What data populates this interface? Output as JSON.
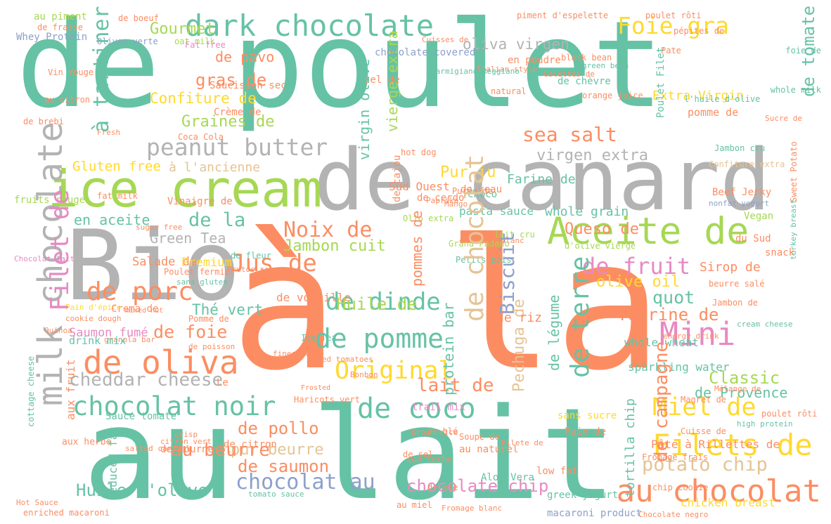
{
  "words": [
    {
      "text": "de poulet",
      "color": "c0"
    },
    {
      "text": "à la",
      "color": "c1"
    },
    {
      "text": "au lait",
      "color": "c0"
    },
    {
      "text": "de canard",
      "color": "c7"
    },
    {
      "text": "Bio",
      "color": "c7"
    },
    {
      "text": "ice cream",
      "color": "c4"
    },
    {
      "text": "Aceite de",
      "color": "c4"
    },
    {
      "text": "dark chocolate",
      "color": "c0"
    },
    {
      "text": "peanut butter",
      "color": "c7"
    },
    {
      "text": "Foie gra",
      "color": "c5"
    },
    {
      "text": "oliva virgen",
      "color": "c7"
    },
    {
      "text": "Gourmet",
      "color": "c4"
    },
    {
      "text": "de pavo",
      "color": "c1"
    },
    {
      "text": "gras de",
      "color": "c1"
    },
    {
      "text": "Confiture de",
      "color": "c5"
    },
    {
      "text": "Graines de",
      "color": "c4"
    },
    {
      "text": "sea salt",
      "color": "c1"
    },
    {
      "text": "virgen extra",
      "color": "c7"
    },
    {
      "text": "Gluten free",
      "color": "c5"
    },
    {
      "text": "à l'ancienne",
      "color": "c6"
    },
    {
      "text": "Pur ju",
      "color": "c5"
    },
    {
      "text": "Noix de",
      "color": "c1"
    },
    {
      "text": "Jus de",
      "color": "c1"
    },
    {
      "text": "en aceite",
      "color": "c0"
    },
    {
      "text": "de la",
      "color": "c0"
    },
    {
      "text": "Green Tea",
      "color": "c7"
    },
    {
      "text": "Jambon cuit",
      "color": "c4"
    },
    {
      "text": "Queso de",
      "color": "c1"
    },
    {
      "text": "de fruit",
      "color": "c3"
    },
    {
      "text": "olive oil",
      "color": "c5"
    },
    {
      "text": "de porc",
      "color": "c1"
    },
    {
      "text": "de dinde",
      "color": "c0"
    },
    {
      "text": "de pomme",
      "color": "c0"
    },
    {
      "text": "Huile de",
      "color": "c4"
    },
    {
      "text": "Thé vert",
      "color": "c0"
    },
    {
      "text": "de foie",
      "color": "c1"
    },
    {
      "text": "de oliva",
      "color": "c1"
    },
    {
      "text": "Original",
      "color": "c5"
    },
    {
      "text": "Mini",
      "color": "c3"
    },
    {
      "text": "quot",
      "color": "c0"
    },
    {
      "text": "Terrine de",
      "color": "c1"
    },
    {
      "text": "Classic",
      "color": "c4"
    },
    {
      "text": "cheddar cheese",
      "color": "c7"
    },
    {
      "text": "lait de",
      "color": "c1"
    },
    {
      "text": "chocolat noir",
      "color": "c0"
    },
    {
      "text": "de coco",
      "color": "c0"
    },
    {
      "text": "Miel de",
      "color": "c5"
    },
    {
      "text": "de pollo",
      "color": "c1"
    },
    {
      "text": "pur beurre",
      "color": "c6"
    },
    {
      "text": "Filets de",
      "color": "c5"
    },
    {
      "text": "potato chip",
      "color": "c6"
    },
    {
      "text": "au beurre",
      "color": "c1"
    },
    {
      "text": "de saumon",
      "color": "c1"
    },
    {
      "text": "au chocolat",
      "color": "c1"
    },
    {
      "text": "Huile d'olive",
      "color": "c0"
    },
    {
      "text": "chocolat au",
      "color": "c2"
    },
    {
      "text": "chocolate chip",
      "color": "c3"
    },
    {
      "text": "chicken breast",
      "color": "c5"
    },
    {
      "text": "Saumon fumé",
      "color": "c3"
    },
    {
      "text": "Salade de",
      "color": "c1"
    },
    {
      "text": "Premium",
      "color": "c5"
    },
    {
      "text": "de volaille",
      "color": "c1"
    },
    {
      "text": "pasta sauce",
      "color": "c0"
    },
    {
      "text": "whole grain",
      "color": "c0"
    },
    {
      "text": "Sirop de",
      "color": "c1"
    },
    {
      "text": "whole wheat",
      "color": "c0"
    },
    {
      "text": "sparkling water",
      "color": "c0"
    },
    {
      "text": "de Provence",
      "color": "c0"
    },
    {
      "text": "Pâte à Rillettes de",
      "color": "c1"
    },
    {
      "text": "Farine de",
      "color": "c0"
    },
    {
      "text": "de tomate",
      "color": "c0"
    },
    {
      "text": "Extra Virgin",
      "color": "c5"
    },
    {
      "text": "pomme de",
      "color": "c1"
    },
    {
      "text": "au piment",
      "color": "c4"
    },
    {
      "text": "Whey Protein",
      "color": "c2"
    },
    {
      "text": "Saucisson sec",
      "color": "c1"
    },
    {
      "text": "Vinaigre de",
      "color": "c1"
    },
    {
      "text": "fruits rouge",
      "color": "c4"
    },
    {
      "text": "sel de",
      "color": "c1"
    },
    {
      "text": "en poudre",
      "color": "c1"
    },
    {
      "text": "de chèvre",
      "color": "c0"
    },
    {
      "text": "Crème de",
      "color": "c1"
    },
    {
      "text": "Choco",
      "color": "c0"
    },
    {
      "text": "de veau",
      "color": "c1"
    },
    {
      "text": "Beef Jerky",
      "color": "c1"
    },
    {
      "text": "Vegan",
      "color": "c4"
    },
    {
      "text": "du Sud",
      "color": "c1"
    },
    {
      "text": "snack",
      "color": "c1"
    },
    {
      "text": "Crema de",
      "color": "c1"
    },
    {
      "text": "trail mix",
      "color": "c3"
    },
    {
      "text": "Sauce tomate",
      "color": "c0"
    },
    {
      "text": "sans sucre",
      "color": "c5"
    },
    {
      "text": "Pain de",
      "color": "c1"
    },
    {
      "text": "Aloe Vera",
      "color": "c0"
    },
    {
      "text": "low fat",
      "color": "c1"
    },
    {
      "text": "greek yogurt",
      "color": "c0"
    },
    {
      "text": "macaroni product",
      "color": "c2"
    },
    {
      "text": "au naturel",
      "color": "c1"
    },
    {
      "text": "piment d'espelette",
      "color": "c1"
    },
    {
      "text": "poulet rôti",
      "color": "c1"
    },
    {
      "text": "Olives verte",
      "color": "c2"
    },
    {
      "text": "oat milk",
      "color": "c4"
    },
    {
      "text": "Pate",
      "color": "c1"
    },
    {
      "text": "foie de",
      "color": "c0"
    },
    {
      "text": "whole milk",
      "color": "c0"
    },
    {
      "text": "Fat free",
      "color": "c3"
    },
    {
      "text": "black bean",
      "color": "c1"
    },
    {
      "text": "de boeuf",
      "color": "c1"
    },
    {
      "text": "pépites de",
      "color": "c1"
    },
    {
      "text": "hot dog",
      "color": "c1"
    },
    {
      "text": "natural",
      "color": "c1"
    },
    {
      "text": "Vin rouge",
      "color": "c1"
    },
    {
      "text": "au citron",
      "color": "c1"
    },
    {
      "text": "de brebi",
      "color": "c1"
    },
    {
      "text": "Coca Cola",
      "color": "c1"
    },
    {
      "text": "l'huile d'olive",
      "color": "c0"
    },
    {
      "text": "Confiture extra",
      "color": "c6"
    },
    {
      "text": "Jambon cru",
      "color": "c0"
    },
    {
      "text": "Purée de",
      "color": "c1"
    },
    {
      "text": "lait cru",
      "color": "c4"
    },
    {
      "text": "Olio extra",
      "color": "c4"
    },
    {
      "text": "d'olive vierge",
      "color": "c4"
    },
    {
      "text": "Petits pois",
      "color": "c0"
    },
    {
      "text": "Grana Padano",
      "color": "c4"
    },
    {
      "text": "de fleur",
      "color": "c0"
    },
    {
      "text": "Poulet fermier",
      "color": "c1"
    },
    {
      "text": "Pain d'épice",
      "color": "c5"
    },
    {
      "text": "chocolat blanc",
      "color": "c1"
    },
    {
      "text": "sans gluten",
      "color": "c0"
    },
    {
      "text": "Frutos secos",
      "color": "c1"
    },
    {
      "text": "milk chocolate",
      "color": "c7"
    },
    {
      "text": "Filet de",
      "color": "c3"
    },
    {
      "text": "à tartiner",
      "color": "c0"
    },
    {
      "text": "de terre",
      "color": "c0"
    },
    {
      "text": "de chocolat",
      "color": "c6"
    },
    {
      "text": "Biscuit",
      "color": "c2"
    },
    {
      "text": "Pechuga de",
      "color": "c6"
    },
    {
      "text": "de campagne",
      "color": "c1"
    },
    {
      "text": "tortilla chip",
      "color": "c0"
    },
    {
      "text": "protein bar",
      "color": "c0"
    },
    {
      "text": "de légume",
      "color": "c0"
    },
    {
      "text": "pommes de",
      "color": "c1"
    },
    {
      "text": "virgin olive",
      "color": "c0"
    },
    {
      "text": "vierge extra",
      "color": "c4"
    },
    {
      "text": "chocolate covered",
      "color": "c2"
    },
    {
      "text": "de fraise",
      "color": "c1"
    },
    {
      "text": "de riz",
      "color": "c1"
    },
    {
      "text": "aux fruit",
      "color": "c1"
    },
    {
      "text": "fat milk",
      "color": "c1"
    },
    {
      "text": "reduced fat",
      "color": "c0"
    },
    {
      "text": "high protein",
      "color": "c0"
    },
    {
      "text": "cream cheese",
      "color": "c0"
    },
    {
      "text": "energy drink",
      "color": "c1"
    },
    {
      "text": "brown rice",
      "color": "c1"
    },
    {
      "text": "Ice Tea",
      "color": "c0"
    },
    {
      "text": "Sucre de",
      "color": "c1"
    },
    {
      "text": "nonfat yogurt",
      "color": "c2"
    },
    {
      "text": "Poulet Filet",
      "color": "c0"
    },
    {
      "text": "green bean",
      "color": "c0"
    },
    {
      "text": "orange juice",
      "color": "c1"
    },
    {
      "text": "aux herbe",
      "color": "c1"
    },
    {
      "text": "chip cookie",
      "color": "c1"
    },
    {
      "text": "de blé",
      "color": "c1"
    },
    {
      "text": "de mie",
      "color": "c1"
    },
    {
      "text": "Fromage frais",
      "color": "c1"
    },
    {
      "text": "Cuisse de",
      "color": "c1"
    },
    {
      "text": "Magret de",
      "color": "c1"
    },
    {
      "text": "poulet rôti",
      "color": "c1"
    },
    {
      "text": "enriched macaroni",
      "color": "c1"
    },
    {
      "text": "Hot Sauce",
      "color": "c1"
    },
    {
      "text": "tomato sauce",
      "color": "c0"
    },
    {
      "text": "au miel",
      "color": "c1"
    },
    {
      "text": "Fromage blanc",
      "color": "c1"
    },
    {
      "text": "Chocolate negro",
      "color": "c1"
    },
    {
      "text": "Soupe de",
      "color": "c1"
    },
    {
      "text": "con leche",
      "color": "c1"
    },
    {
      "text": "Filete de",
      "color": "c1"
    },
    {
      "text": "cookie dough",
      "color": "c1"
    },
    {
      "text": "Quinoa",
      "color": "c1"
    },
    {
      "text": "Sweet Potato",
      "color": "c1"
    },
    {
      "text": "Italian style",
      "color": "c1"
    },
    {
      "text": "Cuisses de",
      "color": "c1"
    },
    {
      "text": "Galettes de",
      "color": "c1"
    },
    {
      "text": "Parmigiano Reggiano",
      "color": "c0"
    },
    {
      "text": "beurre salé",
      "color": "c1"
    },
    {
      "text": "Jambon de",
      "color": "c1"
    },
    {
      "text": "turkey breast",
      "color": "c0"
    },
    {
      "text": "Mélange de",
      "color": "c1"
    },
    {
      "text": "Bonbon",
      "color": "c1"
    },
    {
      "text": "crisp",
      "color": "c1"
    },
    {
      "text": "fines herbe",
      "color": "c1"
    },
    {
      "text": "diced tomatoes",
      "color": "c1"
    },
    {
      "text": "citron vert",
      "color": "c1"
    },
    {
      "text": "salted caramel",
      "color": "c1"
    },
    {
      "text": "mixed nut",
      "color": "c1"
    },
    {
      "text": "Frosted",
      "color": "c1"
    },
    {
      "text": "Haricots vert",
      "color": "c1"
    },
    {
      "text": "Pomme de",
      "color": "c1"
    },
    {
      "text": "Chocolat lait",
      "color": "c3"
    },
    {
      "text": "cottage cheese",
      "color": "c0"
    },
    {
      "text": "granola bar",
      "color": "c1"
    },
    {
      "text": "drink mix",
      "color": "c0"
    },
    {
      "text": "de poisson",
      "color": "c1"
    },
    {
      "text": "Paprika",
      "color": "c1"
    },
    {
      "text": "Mango",
      "color": "c1"
    },
    {
      "text": "Fresh",
      "color": "c1"
    },
    {
      "text": "sugar free",
      "color": "c1"
    },
    {
      "text": "de cerdo",
      "color": "c1"
    },
    {
      "text": "de tournesol",
      "color": "c1"
    },
    {
      "text": "de citron",
      "color": "c1"
    },
    {
      "text": "Le",
      "color": "c1"
    },
    {
      "text": "Sud Ouest",
      "color": "c1"
    },
    {
      "text": "de cajou",
      "color": "c1"
    },
    {
      "text": "de sel",
      "color": "c1"
    }
  ]
}
